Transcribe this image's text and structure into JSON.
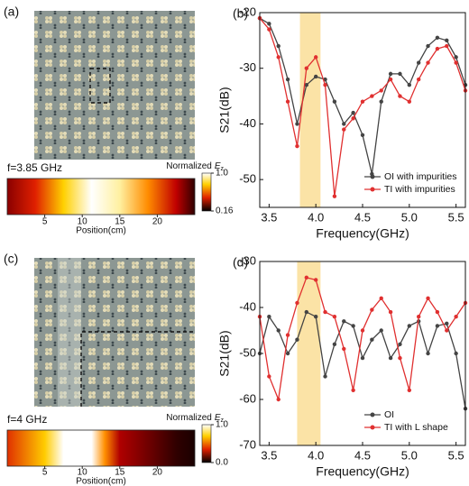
{
  "chart_data": [
    {
      "type": "line",
      "label": "(b)",
      "xlabel": "Frequency(GHz)",
      "ylabel": "S21(dB)",
      "x": [
        3.4,
        3.5,
        3.6,
        3.7,
        3.8,
        3.9,
        4.0,
        4.1,
        4.2,
        4.3,
        4.4,
        4.5,
        4.6,
        4.7,
        4.8,
        4.9,
        5.0,
        5.1,
        5.2,
        5.3,
        5.4,
        5.5,
        5.6
      ],
      "xlim": [
        3.4,
        5.6
      ],
      "xticks": [
        3.5,
        {
          "value": 4,
          "label": "4.0"
        },
        4.5,
        {
          "value": 5,
          "label": "5.0"
        },
        5.5
      ],
      "ylim": [
        -55,
        -20
      ],
      "yticks": [
        -20,
        -30,
        -40,
        -50
      ],
      "highlight": [
        3.83,
        4.05
      ],
      "highlight_color": "#fbe3a6",
      "legend": "lower right",
      "series": [
        {
          "name": "OI with impurities",
          "color": "#444444",
          "values": [
            -21,
            -22,
            -26,
            -32,
            -40,
            -33,
            -31.5,
            -32,
            -36,
            -40,
            -38,
            -42,
            -49,
            -36,
            -31,
            -31,
            -33,
            -29,
            -26,
            -24.5,
            -25,
            -28,
            -33
          ]
        },
        {
          "name": "TI with impurities",
          "color": "#e03030",
          "values": [
            -21,
            -23,
            -28,
            -36,
            -44,
            -30,
            -28,
            -33,
            -53,
            -41,
            -39,
            -36,
            -35,
            -34,
            -32,
            -35,
            -36,
            -32,
            -29,
            -26.5,
            -26,
            -29,
            -34
          ]
        }
      ]
    },
    {
      "type": "line",
      "label": "(d)",
      "xlabel": "Frequency(GHz)",
      "ylabel": "S21(dB)",
      "x": [
        3.4,
        3.5,
        3.6,
        3.7,
        3.8,
        3.9,
        4.0,
        4.1,
        4.2,
        4.3,
        4.4,
        4.5,
        4.6,
        4.7,
        4.8,
        4.9,
        5.0,
        5.1,
        5.2,
        5.3,
        5.4,
        5.5,
        5.6
      ],
      "xlim": [
        3.4,
        5.6
      ],
      "xticks": [
        3.5,
        {
          "value": 4,
          "label": "4.0"
        },
        4.5,
        {
          "value": 5,
          "label": "5.0"
        },
        5.5
      ],
      "ylim": [
        -70,
        -30
      ],
      "yticks": [
        -30,
        -40,
        -50,
        -60,
        -70
      ],
      "highlight": [
        3.8,
        4.05
      ],
      "highlight_color": "#fbe3a6",
      "legend": "lower right",
      "series": [
        {
          "name": "OI",
          "color": "#444444",
          "values": [
            -50,
            -42,
            -45,
            -50,
            -47,
            -41,
            -42,
            -55,
            -48,
            -43,
            -44,
            -51,
            -47,
            -45,
            -51,
            -48,
            -44,
            -43,
            -50,
            -44,
            -43.5,
            -50,
            -62
          ]
        },
        {
          "name": "TI with L shape",
          "color": "#e03030",
          "values": [
            -42,
            -55,
            -60,
            -46,
            -39,
            -33.5,
            -34,
            -41,
            -42,
            -49,
            -58,
            -45,
            -40.5,
            -38,
            -41,
            -51,
            -58,
            -42,
            -38,
            -41,
            -45,
            -42,
            -39
          ]
        }
      ]
    }
  ],
  "maps": [
    {
      "label": "(a)",
      "freq": "f=3.85 GHz",
      "cbar_title": "Normalized",
      "cbar_symbol": "E",
      "cbar_sub": "z",
      "cticks": [
        {
          "value": 1,
          "label": "1.0"
        },
        0.16
      ],
      "clim": [
        0.16,
        1
      ],
      "xlabel": "Position(cm)",
      "xlim": [
        0,
        25
      ],
      "xticks": [
        5,
        10,
        15,
        20
      ]
    },
    {
      "label": "(c)",
      "freq": "f=4 GHz",
      "cbar_title": "Normalized",
      "cbar_symbol": "E",
      "cbar_sub": "z",
      "cticks": [
        {
          "value": 1,
          "label": "1.0"
        },
        {
          "value": 0,
          "label": "0.0"
        }
      ],
      "clim": [
        0,
        1
      ],
      "xlabel": "Position(cm)",
      "xlim": [
        0,
        25
      ],
      "xticks": [
        5,
        10,
        15,
        20
      ]
    }
  ]
}
